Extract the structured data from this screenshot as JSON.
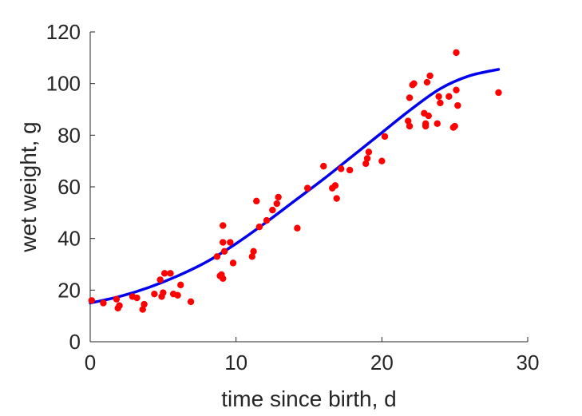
{
  "chart_data": {
    "type": "scatter",
    "title": "",
    "xlabel": "time since birth, d",
    "ylabel": "wet weight, g",
    "xlim": [
      0,
      30
    ],
    "ylim": [
      0,
      120
    ],
    "xticks": [
      0,
      10,
      20,
      30
    ],
    "yticks": [
      0,
      20,
      40,
      60,
      80,
      100,
      120
    ],
    "grid": false,
    "legend": "none",
    "series": [
      {
        "type": "scatter",
        "color": "#ff0000",
        "x": [
          0.1,
          0.9,
          1.8,
          1.9,
          2.0,
          2.9,
          3.2,
          3.6,
          3.7,
          4.4,
          4.8,
          4.9,
          5.0,
          5.1,
          5.5,
          5.7,
          6.0,
          6.2,
          6.9,
          8.7,
          8.9,
          9.0,
          9.1,
          9.1,
          9.1,
          9.2,
          9.6,
          9.8,
          11.1,
          11.2,
          11.4,
          11.6,
          12.1,
          12.5,
          12.8,
          12.9,
          14.2,
          14.9,
          16.0,
          16.6,
          16.8,
          16.9,
          17.2,
          17.8,
          18.9,
          19.0,
          19.1,
          20.0,
          20.2,
          21.8,
          21.9,
          21.9,
          22.1,
          22.2,
          22.9,
          23.0,
          23.0,
          23.1,
          23.2,
          23.3,
          23.8,
          23.9,
          24.0,
          24.6,
          24.9,
          25.0,
          25.1,
          25.1,
          25.2,
          28.0
        ],
        "y": [
          16,
          15,
          16.5,
          13,
          14,
          17.5,
          17,
          12.5,
          14.5,
          18.5,
          24,
          17.5,
          19,
          26.5,
          26.5,
          18.5,
          18,
          22,
          15.5,
          33,
          25.5,
          26,
          24.5,
          45,
          38.5,
          35,
          38.5,
          30.5,
          33,
          35,
          54.5,
          44.5,
          47,
          51,
          53.5,
          56,
          44,
          59.5,
          68,
          59.5,
          60.5,
          55.5,
          67,
          66.5,
          69,
          71,
          73.5,
          70,
          79.5,
          85.5,
          94.5,
          83.5,
          99.5,
          100,
          88.5,
          84.5,
          83.5,
          100.5,
          87.5,
          103,
          84.5,
          95,
          92.5,
          95,
          83,
          83.5,
          97.5,
          112,
          91.5,
          96.5
        ]
      },
      {
        "type": "line",
        "color": "#0000ee",
        "x": [
          0,
          2,
          4,
          6,
          8,
          10,
          12,
          14,
          16,
          18,
          20,
          22,
          24,
          26,
          28
        ],
        "y": [
          15,
          17.5,
          21,
          25.5,
          31,
          38,
          46,
          54.5,
          63,
          72,
          81,
          90,
          98,
          103,
          105.5
        ]
      }
    ]
  }
}
